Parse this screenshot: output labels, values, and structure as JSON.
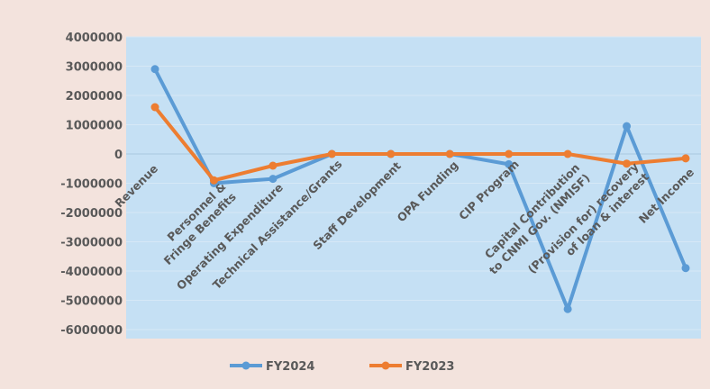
{
  "chart_data": {
    "type": "line",
    "title": "",
    "xlabel": "",
    "ylabel": "",
    "ylim": [
      -6000000,
      4000000
    ],
    "yticks": [
      "4000000",
      "3000000",
      "2000000",
      "1000000",
      "0",
      "-1000000",
      "-2000000",
      "-3000000",
      "-4000000",
      "-5000000",
      "-6000000"
    ],
    "categories": [
      [
        "Revenue"
      ],
      [
        "Personnel &",
        "Fringe Benefits"
      ],
      [
        "Operating Expenditure"
      ],
      [
        "Technical Assistance/Grants"
      ],
      [
        "Staff Development"
      ],
      [
        "OPA Funding"
      ],
      [
        "CIP Program"
      ],
      [
        "Capital Contribution",
        "to CNMI Gov. (NMISF)"
      ],
      [
        "(Provision for) recovery",
        "of loan & interest"
      ],
      [
        "Net Income"
      ]
    ],
    "series": [
      {
        "name": "FY2024",
        "color": "#5b9bd5",
        "values": [
          2900000,
          -1000000,
          -850000,
          0,
          0,
          0,
          -350000,
          -5300000,
          950000,
          -3900000
        ]
      },
      {
        "name": "FY2023",
        "color": "#ed7d31",
        "values": [
          1600000,
          -900000,
          -400000,
          0,
          0,
          0,
          0,
          0,
          -330000,
          -150000
        ]
      }
    ],
    "legend_position": "bottom",
    "grid": true,
    "plot_background": "#c5e0f4"
  }
}
